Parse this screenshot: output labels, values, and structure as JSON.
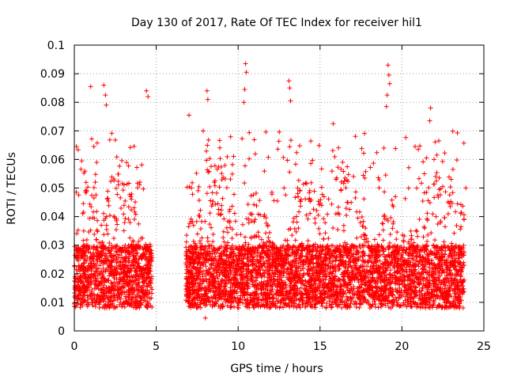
{
  "chart_data": {
    "type": "scatter",
    "title": "Day 130 of 2017, Rate Of TEC Index for receiver hil1",
    "xlabel": "GPS time / hours",
    "ylabel": "ROTI / TECUs",
    "xlim": [
      0,
      25
    ],
    "ylim": [
      0,
      0.1
    ],
    "xticks": [
      0,
      5,
      10,
      15,
      20,
      25
    ],
    "xtick_labels": [
      "0",
      "5",
      "10",
      "15",
      "20",
      "25"
    ],
    "yticks": [
      0,
      0.01,
      0.02,
      0.03,
      0.04,
      0.05,
      0.06,
      0.07,
      0.08,
      0.09,
      0.1
    ],
    "ytick_labels": [
      "0",
      "0.01",
      "0.02",
      "0.03",
      "0.04",
      "0.05",
      "0.06",
      "0.07",
      "0.08",
      "0.09",
      "0.1"
    ],
    "grid": true,
    "marker": "+",
    "color": "#ff0000",
    "data_gaps_hours": [
      [
        4.75,
        6.8
      ]
    ],
    "data_coverage_hours": [
      [
        0.0,
        4.75
      ],
      [
        6.8,
        23.8
      ]
    ],
    "series": [
      {
        "name": "hil1 ROTI",
        "notable_points": [
          {
            "x": 1.0,
            "y": 0.0855
          },
          {
            "x": 1.8,
            "y": 0.086
          },
          {
            "x": 1.9,
            "y": 0.0825
          },
          {
            "x": 1.95,
            "y": 0.079
          },
          {
            "x": 4.4,
            "y": 0.084
          },
          {
            "x": 4.5,
            "y": 0.082
          },
          {
            "x": 7.0,
            "y": 0.0755
          },
          {
            "x": 8.1,
            "y": 0.084
          },
          {
            "x": 8.15,
            "y": 0.081
          },
          {
            "x": 10.45,
            "y": 0.0935
          },
          {
            "x": 10.5,
            "y": 0.0905
          },
          {
            "x": 10.4,
            "y": 0.0845
          },
          {
            "x": 10.35,
            "y": 0.08
          },
          {
            "x": 13.1,
            "y": 0.0875
          },
          {
            "x": 13.15,
            "y": 0.085
          },
          {
            "x": 13.2,
            "y": 0.0805
          },
          {
            "x": 15.8,
            "y": 0.0725
          },
          {
            "x": 18.9,
            "y": 0.064
          },
          {
            "x": 19.15,
            "y": 0.093
          },
          {
            "x": 19.2,
            "y": 0.0895
          },
          {
            "x": 19.25,
            "y": 0.0865
          },
          {
            "x": 19.1,
            "y": 0.0825
          },
          {
            "x": 19.05,
            "y": 0.0785
          },
          {
            "x": 21.75,
            "y": 0.078
          },
          {
            "x": 21.7,
            "y": 0.0735
          },
          {
            "x": 22.25,
            "y": 0.0665
          },
          {
            "x": 8.0,
            "y": 0.0045
          },
          {
            "x": 23.9,
            "y": 0.05
          }
        ],
        "typical_range": [
          0.005,
          0.05
        ]
      }
    ]
  }
}
